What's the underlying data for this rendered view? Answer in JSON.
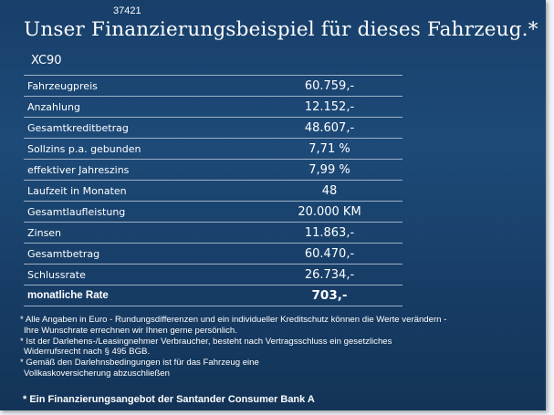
{
  "ref_number": "37421",
  "title": "Unser Finanzierungsbeispiel für dieses Fahrzeug.*",
  "model": "XC90",
  "rows": [
    {
      "label": "Fahrzeugpreis",
      "value": "60.759,-"
    },
    {
      "label": "Anzahlung",
      "value": "12.152,-"
    },
    {
      "label": "Gesamtkreditbetrag",
      "value": "48.607,-"
    },
    {
      "label": "Sollzins p.a. gebunden",
      "value": "7,71 %"
    },
    {
      "label": "effektiver Jahreszins",
      "value": "7,99 %"
    },
    {
      "label": "Laufzeit in Monaten",
      "value": "48"
    },
    {
      "label": "Gesamtlaufleistung",
      "value": "20.000 KM"
    },
    {
      "label": "Zinsen",
      "value": "11.863,-"
    },
    {
      "label": "Gesamtbetrag",
      "value": "60.470,-"
    },
    {
      "label": "Schlussrate",
      "value": "26.734,-"
    },
    {
      "label": "monatliche Rate",
      "value": "703,-"
    }
  ],
  "notes": [
    "* Alle Angaben in Euro - Rundungsdifferenzen und ein individueller Kreditschutz können die Werte verändern -",
    "  Ihre Wunschrate errechnen wir Ihnen gerne persönlich.",
    "* Ist der Darlehens-/Leasingnehmer Verbraucher, besteht nach Vertragsschluss ein gesetzliches",
    "  Widerrufsrecht   nach § 495 BGB.",
    "* Gemäß den Darlehnsbedingungen ist für das Fahrzeug eine",
    "  Vollkaskoversicherung abzuschließen"
  ],
  "footer": "* Ein Finanzierungsangebot der Santander Consumer Bank A"
}
